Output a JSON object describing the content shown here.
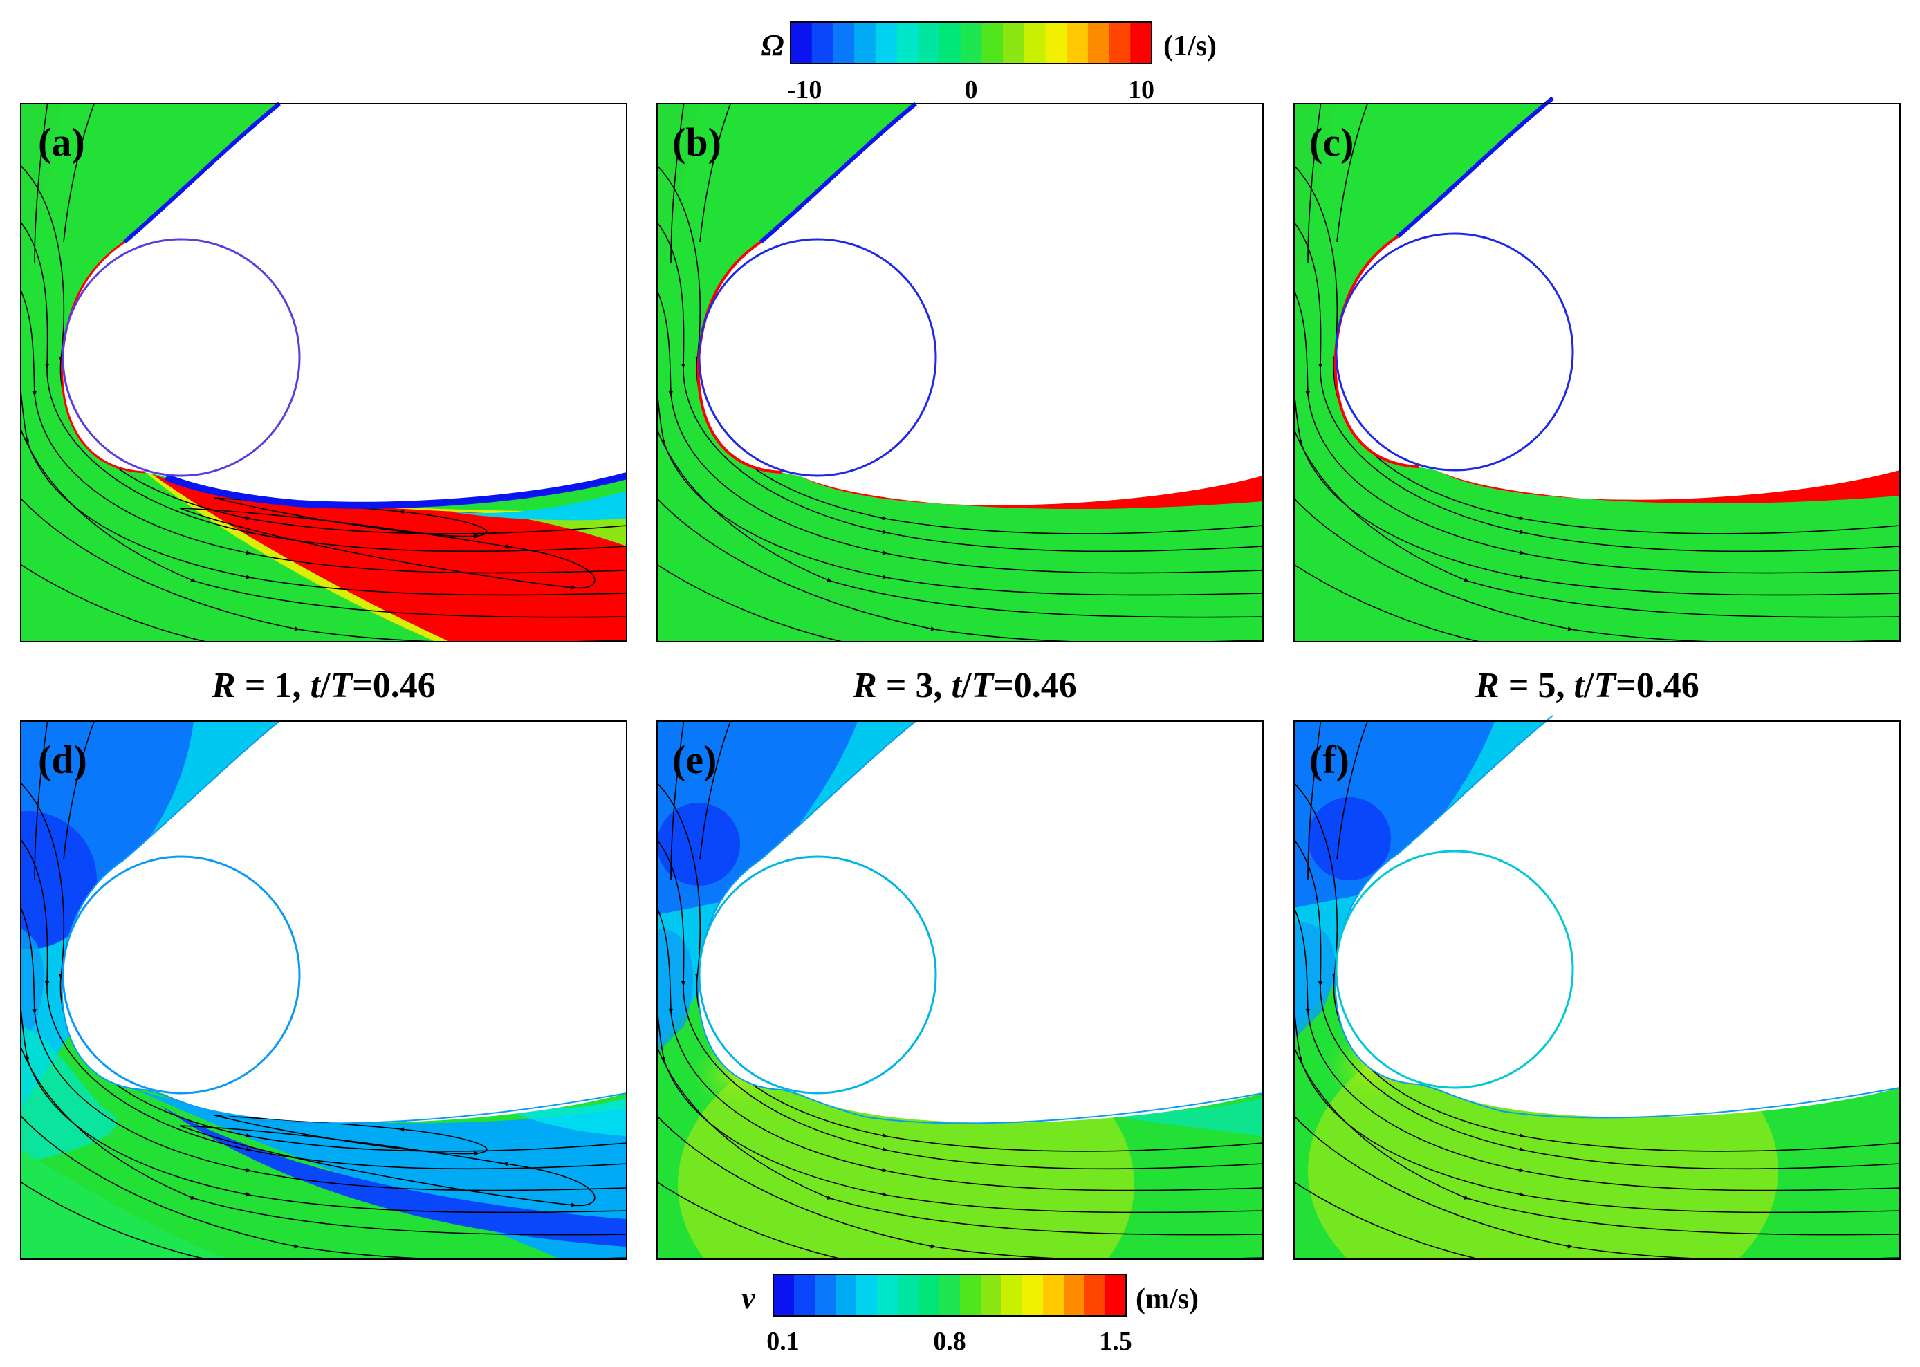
{
  "figure": {
    "colorbar_top": {
      "symbol": "Ω",
      "unit": "(1/s)",
      "ticks": [
        "-10",
        "0",
        "10"
      ],
      "range": [
        -10,
        10
      ],
      "colors": [
        "#0a14f0",
        "#0a46fa",
        "#0a78fa",
        "#00aaf5",
        "#00d2f0",
        "#00e6c8",
        "#00e6a0",
        "#00e678",
        "#1ee650",
        "#50e61e",
        "#8ce614",
        "#c8f000",
        "#f0f000",
        "#ffc800",
        "#ff8c00",
        "#ff4600",
        "#ff0000"
      ]
    },
    "colorbar_bottom": {
      "symbol": "v",
      "unit": "(m/s)",
      "ticks": [
        "0.1",
        "0.8",
        "1.5"
      ],
      "range": [
        0.1,
        1.5
      ],
      "colors": [
        "#0a14f0",
        "#0a46fa",
        "#0a78fa",
        "#00aaf5",
        "#00d2f0",
        "#00e6c8",
        "#00e6a0",
        "#00e678",
        "#1ee650",
        "#50e61e",
        "#8ce614",
        "#c8f000",
        "#f0f000",
        "#ffc800",
        "#ff8c00",
        "#ff4600",
        "#ff0000"
      ]
    },
    "captions": [
      {
        "R": "R",
        "eq": " = 1, ",
        "t": "t",
        "slash": "/",
        "T": "T",
        "val": "=0.46"
      },
      {
        "R": "R",
        "eq": " = 3, ",
        "t": "t",
        "slash": "/",
        "T": "T",
        "val": "=0.46"
      },
      {
        "R": "R",
        "eq": " = 5, ",
        "t": "t",
        "slash": "/",
        "T": "T",
        "val": "=0.46"
      }
    ],
    "panels": [
      {
        "label": "(a)",
        "field": "vorticity",
        "R": 1
      },
      {
        "label": "(b)",
        "field": "vorticity",
        "R": 3
      },
      {
        "label": "(c)",
        "field": "vorticity",
        "R": 5
      },
      {
        "label": "(d)",
        "field": "velocity",
        "R": 1
      },
      {
        "label": "(e)",
        "field": "velocity",
        "R": 3
      },
      {
        "label": "(f)",
        "field": "velocity",
        "R": 5
      }
    ],
    "colors": {
      "background_green": "#22e036",
      "blue": "#0a14f0",
      "red": "#ff0000",
      "cyan": "#00c8f0",
      "light_blue": "#0a9af5",
      "lime": "#7ee81e"
    }
  }
}
